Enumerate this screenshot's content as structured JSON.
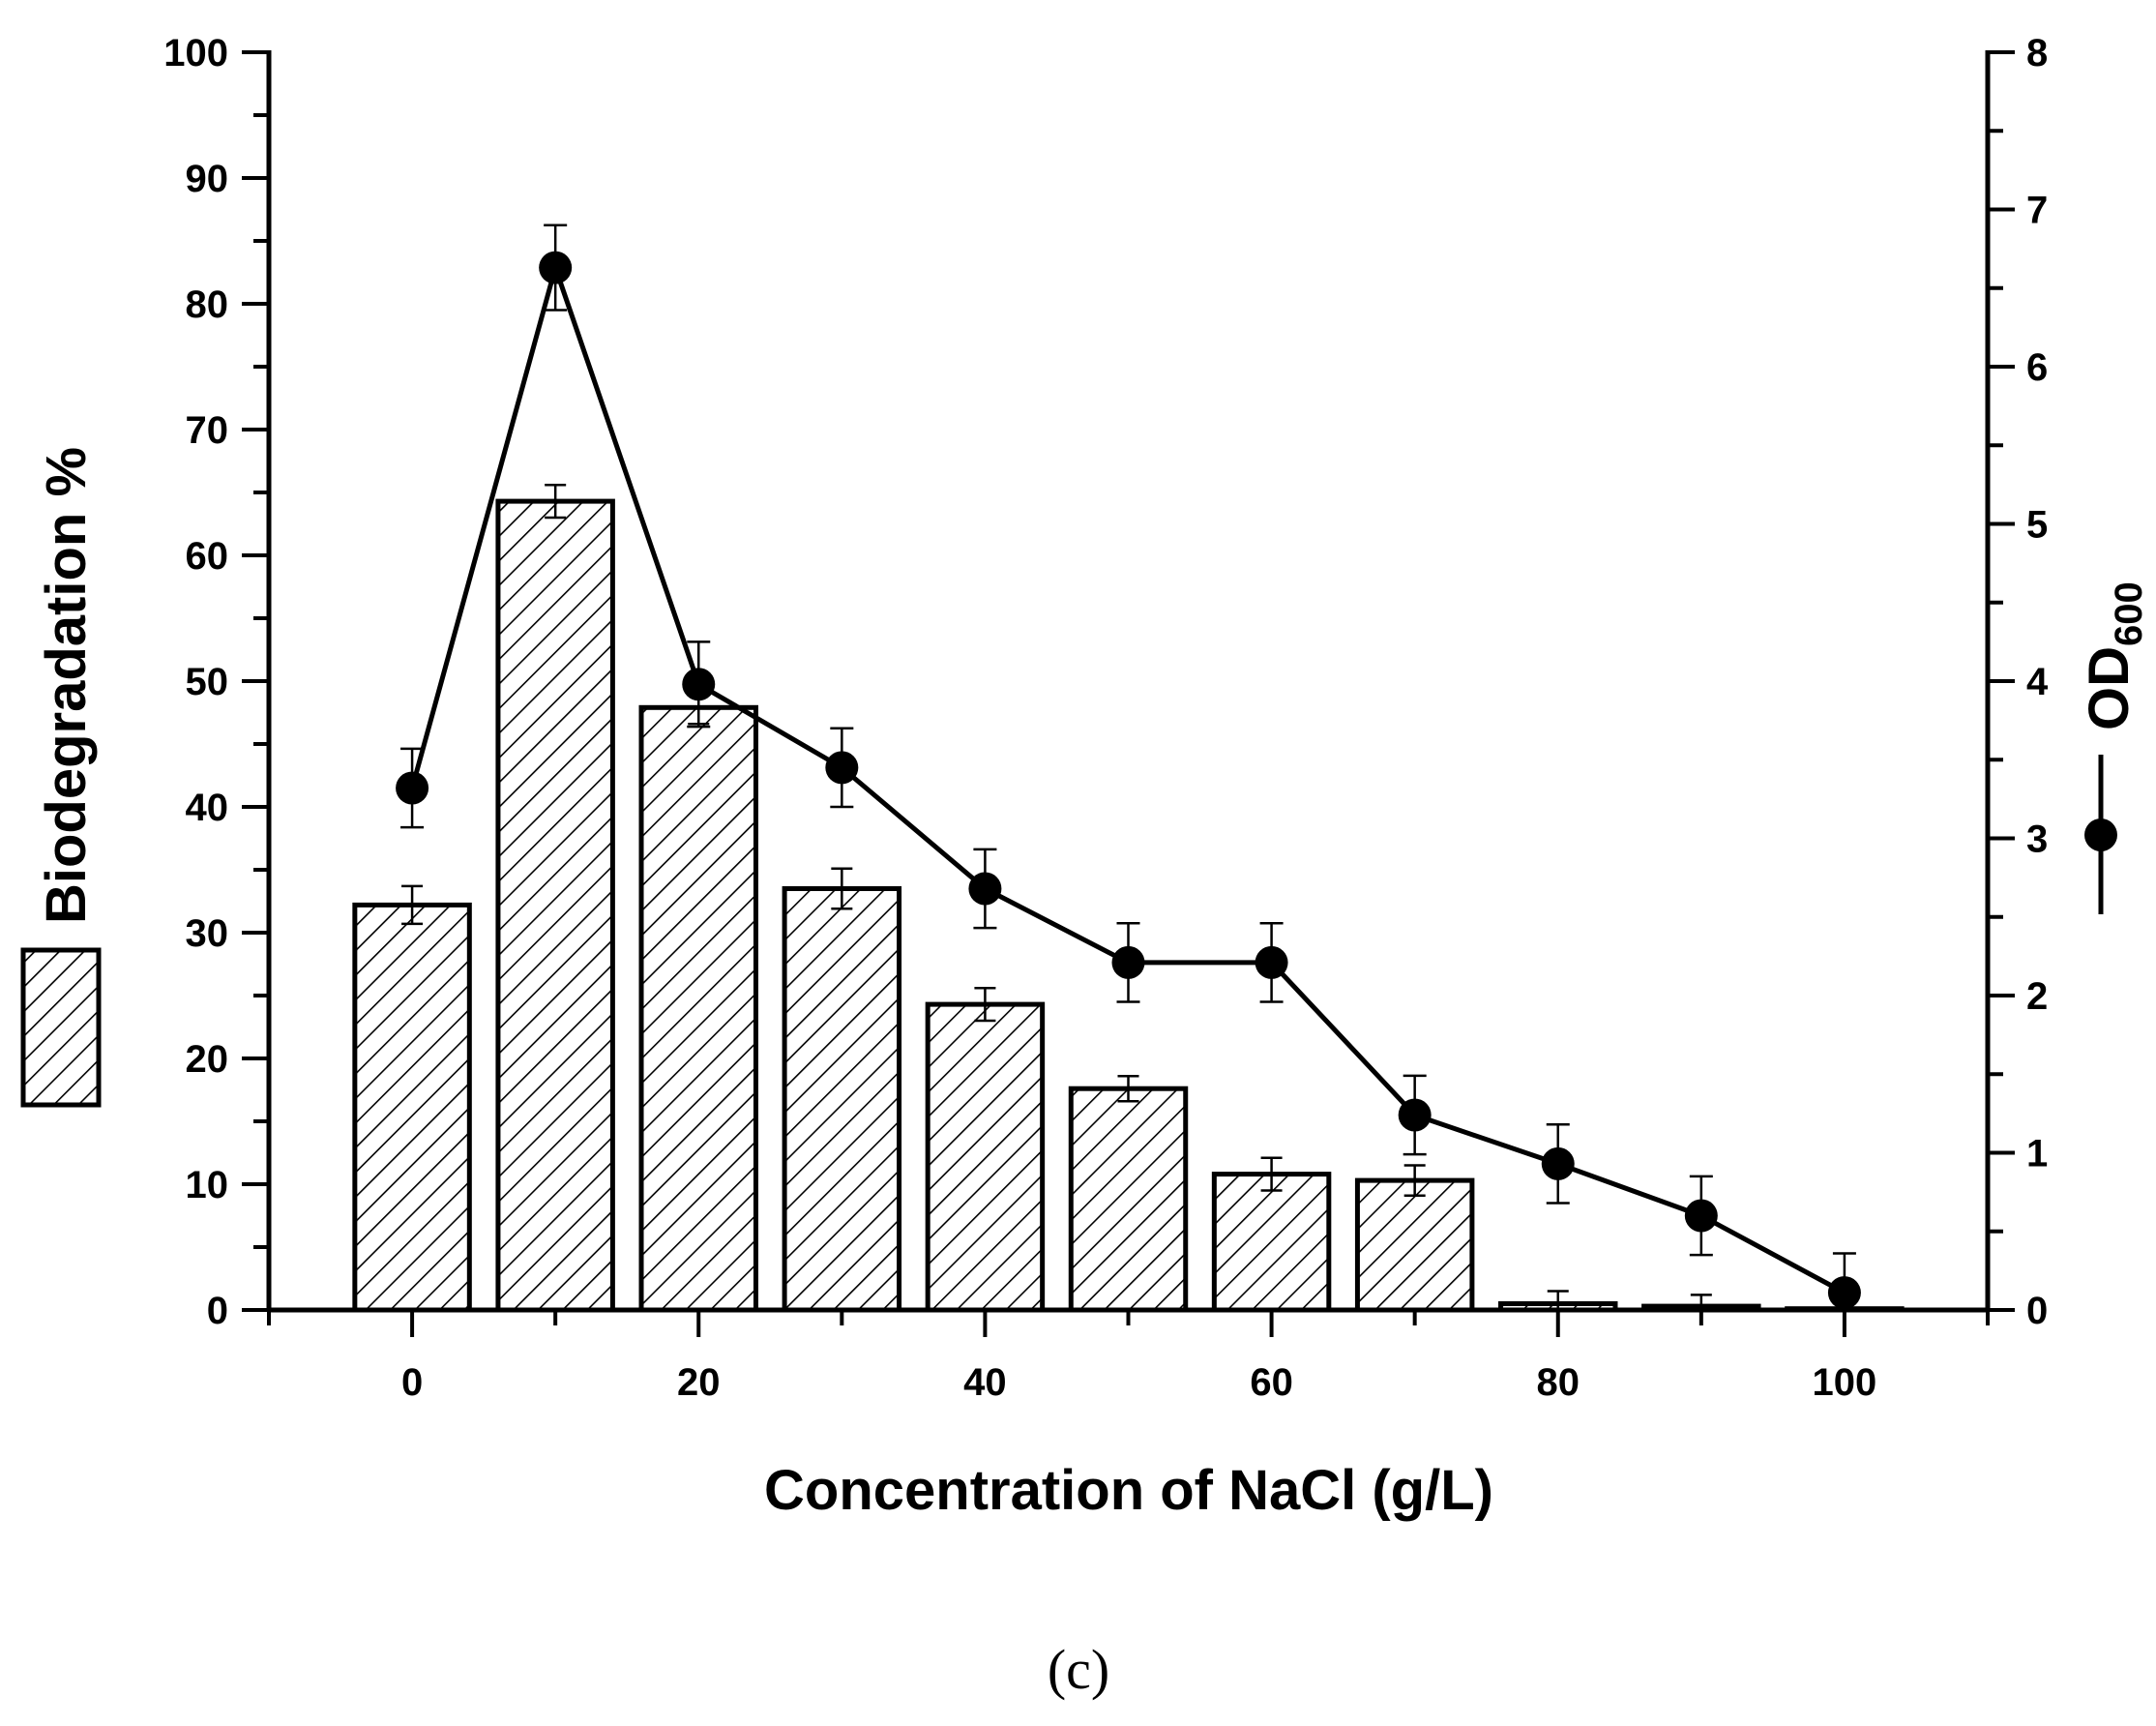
{
  "chart_data": {
    "type": "bar+line",
    "xlabel": "Concentration of NaCl (g/L)",
    "ylabel_left": "Biodegradation %",
    "ylabel_right": "OD",
    "ylabel_right_subscript": "600",
    "caption": "(c)",
    "xlim": [
      -10,
      110
    ],
    "ylim_left": [
      0,
      100
    ],
    "ylim_right": [
      0,
      8
    ],
    "x_ticks": [
      0,
      20,
      40,
      60,
      80,
      100
    ],
    "y_left_ticks": [
      0,
      10,
      20,
      30,
      40,
      50,
      60,
      70,
      80,
      90,
      100
    ],
    "y_right_ticks": [
      0,
      1,
      2,
      3,
      4,
      5,
      6,
      7,
      8
    ],
    "legend": {
      "bar": "Biodegradation %",
      "line": "OD600"
    },
    "series": [
      {
        "name": "Biodegradation %",
        "kind": "bar",
        "axis": "left",
        "x": [
          0,
          10,
          20,
          30,
          40,
          50,
          60,
          70,
          80,
          90,
          100
        ],
        "values": [
          32.2,
          64.3,
          47.9,
          33.5,
          24.3,
          17.6,
          10.8,
          10.3,
          0.5,
          0.3,
          0.1
        ],
        "errors": [
          1.5,
          1.3,
          1.3,
          1.6,
          1.3,
          1.0,
          1.3,
          1.2,
          1.0,
          0.9,
          0.0
        ]
      },
      {
        "name": "OD600",
        "kind": "line",
        "axis": "right",
        "x": [
          0,
          10,
          20,
          30,
          40,
          50,
          60,
          70,
          80,
          90,
          100
        ],
        "values": [
          3.32,
          6.63,
          3.98,
          3.45,
          2.68,
          2.21,
          2.21,
          1.24,
          0.93,
          0.6,
          0.11
        ],
        "errors": [
          0.25,
          0.27,
          0.27,
          0.25,
          0.25,
          0.25,
          0.25,
          0.25,
          0.25,
          0.25,
          0.25
        ]
      }
    ]
  }
}
